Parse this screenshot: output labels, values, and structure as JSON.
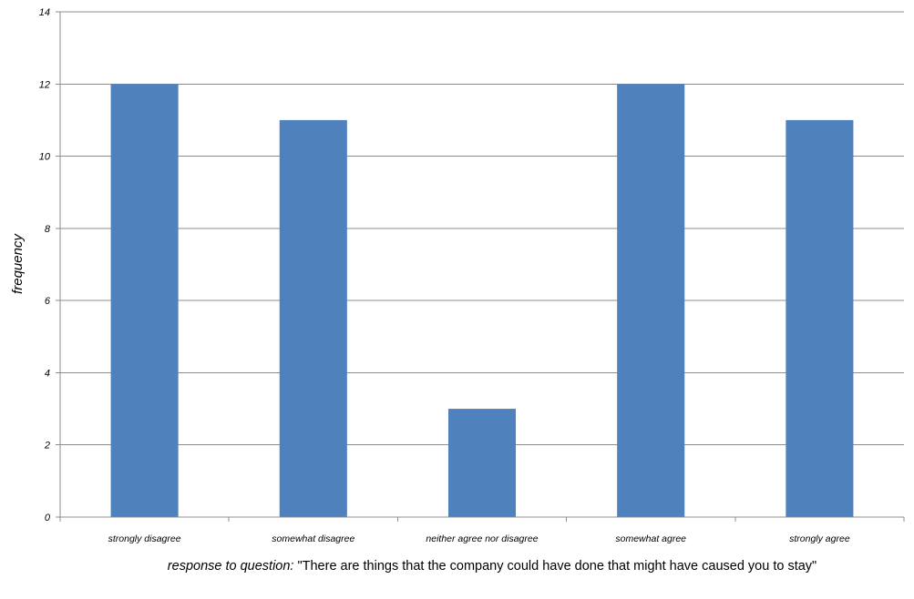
{
  "chart_data": {
    "type": "bar",
    "categories": [
      "strongly disagree",
      "somewhat disagree",
      "neither agree nor disagree",
      "somewhat agree",
      "strongly agree"
    ],
    "values": [
      12,
      11,
      3,
      12,
      11
    ],
    "title": "",
    "ylabel": "frequency",
    "xlabel": {
      "prefix": "response to question: ",
      "quote": "\"There are things that the company could have done that might have caused you to stay\""
    },
    "ylim": [
      0,
      14
    ],
    "yticks": [
      0,
      2,
      4,
      6,
      8,
      10,
      12,
      14
    ],
    "grid": true,
    "bar_color": "#4F81BD",
    "grid_color": "#8C8C8C"
  }
}
